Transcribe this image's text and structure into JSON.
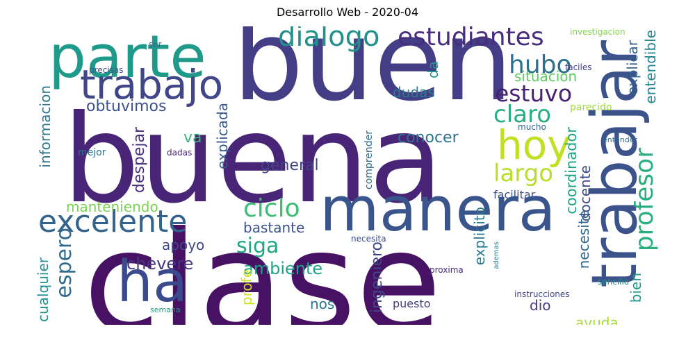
{
  "title": "Desarrollo Web - 2020-04",
  "words": [
    {
      "text": "clase",
      "color": "#471164"
    },
    {
      "text": "buena",
      "color": "#482576"
    },
    {
      "text": "buen",
      "color": "#433e85"
    },
    {
      "text": "parte",
      "color": "#1f9a8a"
    },
    {
      "text": "trabajar",
      "color": "#3b528b"
    },
    {
      "text": "manera",
      "color": "#3a548c"
    },
    {
      "text": "trabajo",
      "color": "#404688"
    },
    {
      "text": "ha",
      "color": "#3b4a8c"
    },
    {
      "text": "hoy",
      "color": "#c2df23"
    },
    {
      "text": "excelente",
      "color": "#33638d"
    },
    {
      "text": "dialogo",
      "color": "#21918c"
    },
    {
      "text": "estudiantes",
      "color": "#472d7b"
    },
    {
      "text": "profesor",
      "color": "#2ab07f"
    },
    {
      "text": "ciclo",
      "color": "#3dbc74"
    },
    {
      "text": "hubo",
      "color": "#2d708e"
    },
    {
      "text": "estuvo",
      "color": "#482173"
    },
    {
      "text": "claro",
      "color": "#29af7f"
    },
    {
      "text": "largo",
      "color": "#b8de29"
    },
    {
      "text": "espero",
      "color": "#2f6b8e"
    },
    {
      "text": "siga",
      "color": "#21a685"
    },
    {
      "text": "chevere",
      "color": "#453781"
    },
    {
      "text": "ambiente",
      "color": "#1fa287"
    },
    {
      "text": "obtuvimos",
      "color": "#3b528b"
    },
    {
      "text": "conocer",
      "color": "#2c738e"
    },
    {
      "text": "general",
      "color": "#414487"
    },
    {
      "text": "explicada",
      "color": "#38598c"
    },
    {
      "text": "despejar",
      "color": "#46327e"
    },
    {
      "text": "va",
      "color": "#35b779"
    },
    {
      "text": "dudas",
      "color": "#287d8e"
    },
    {
      "text": "situacion",
      "color": "#5ec962"
    },
    {
      "text": "da",
      "color": "#1f968b"
    },
    {
      "text": "explicar",
      "color": "#34608d"
    },
    {
      "text": "entendible",
      "color": "#24868e"
    },
    {
      "text": "coordinador",
      "color": "#20a386"
    },
    {
      "text": "docente",
      "color": "#3e4989"
    },
    {
      "text": "necesite",
      "color": "#31688e"
    },
    {
      "text": "explicito",
      "color": "#2a788e"
    },
    {
      "text": "ingeniero",
      "color": "#3f4788"
    },
    {
      "text": "cualquier",
      "color": "#218f8d"
    },
    {
      "text": "informacion",
      "color": "#2a788e"
    },
    {
      "text": "manteniendo",
      "color": "#7ad151"
    },
    {
      "text": "bastante",
      "color": "#3b528b"
    },
    {
      "text": "apoyo",
      "color": "#3e4a89"
    },
    {
      "text": "profe",
      "color": "#d2e21b"
    },
    {
      "text": "nos",
      "color": "#2a778e"
    },
    {
      "text": "dio",
      "color": "#443983"
    },
    {
      "text": "ayuda",
      "color": "#a2da37"
    },
    {
      "text": "bien",
      "color": "#1e9c89"
    },
    {
      "text": "facilitar",
      "color": "#3b528b"
    },
    {
      "text": "puesto",
      "color": "#424086"
    },
    {
      "text": "comprender",
      "color": "#2f6c8e"
    },
    {
      "text": "parecido",
      "color": "#a0da39"
    },
    {
      "text": "mucho",
      "color": "#35608d"
    },
    {
      "text": "mejor",
      "color": "#2b748e"
    },
    {
      "text": "dadas",
      "color": "#482576"
    },
    {
      "text": "precisas",
      "color": "#3b528b"
    },
    {
      "text": "ser",
      "color": "#31688e"
    },
    {
      "text": "investigacion",
      "color": "#86d549"
    },
    {
      "text": "faciles",
      "color": "#433e85"
    },
    {
      "text": "entender",
      "color": "#31688e"
    },
    {
      "text": "necesita",
      "color": "#3e4a89"
    },
    {
      "text": "ademas",
      "color": "#2a788e"
    },
    {
      "text": "proxima",
      "color": "#482878"
    },
    {
      "text": "sencillo",
      "color": "#20928c"
    },
    {
      "text": "instrucciones",
      "color": "#414487"
    },
    {
      "text": "semana",
      "color": "#1f9e89"
    },
    {
      "text": "claras",
      "color": "#424086"
    },
    {
      "text": "realizar",
      "color": "#2c728e"
    }
  ]
}
